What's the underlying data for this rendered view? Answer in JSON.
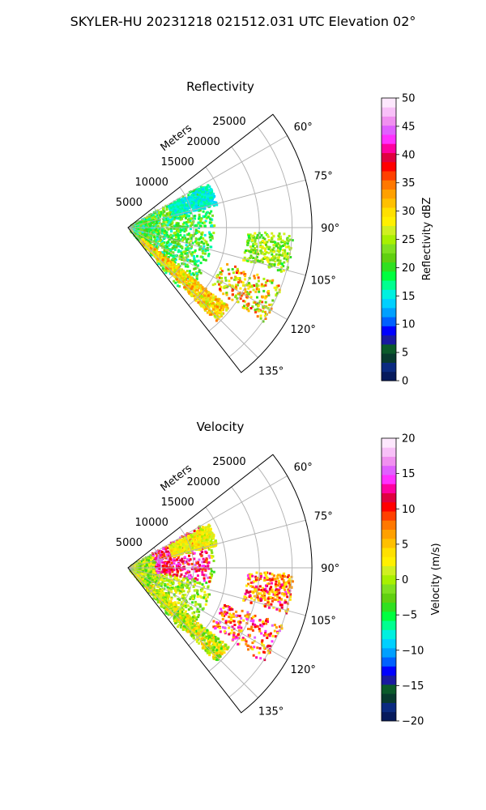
{
  "suptitle": "SKYLER-HU  20231218  021512.031 UTC Elevation 02°",
  "chart_data": [
    {
      "type": "polar-sector",
      "title": "Reflectivity",
      "range_label": "Meters",
      "range_ticks": [
        5000,
        10000,
        15000,
        20000,
        25000
      ],
      "range_max": 28000,
      "azimuth_ticks": [
        "60°",
        "75°",
        "90°",
        "105°",
        "120°",
        "135°"
      ],
      "azimuth_range_deg": [
        52,
        142
      ],
      "grid": true,
      "colorbar": {
        "label": "Reflectivity dBZ",
        "min": 0,
        "max": 50,
        "ticks": [
          "0",
          "5",
          "10",
          "15",
          "20",
          "25",
          "30",
          "35",
          "40",
          "45",
          "50"
        ],
        "colors": [
          "#061a5c",
          "#0a2a80",
          "#083a2e",
          "#0b5a2a",
          "#1a1aa0",
          "#0000ff",
          "#0060ff",
          "#00a0ff",
          "#00d0ff",
          "#00f0e0",
          "#00ff90",
          "#00ff40",
          "#30e020",
          "#60d010",
          "#80e020",
          "#a8f000",
          "#d0f020",
          "#fff000",
          "#ffe000",
          "#ffc000",
          "#ffa000",
          "#ff7800",
          "#ff4000",
          "#ff0000",
          "#e00040",
          "#ff00a0",
          "#ff30ff",
          "#e060ff",
          "#f090f0",
          "#f8c0f8",
          "#fde8fd"
        ]
      }
    },
    {
      "type": "polar-sector",
      "title": "Velocity",
      "range_label": "Meters",
      "range_ticks": [
        5000,
        10000,
        15000,
        20000,
        25000
      ],
      "range_max": 28000,
      "azimuth_ticks": [
        "60°",
        "75°",
        "90°",
        "105°",
        "120°",
        "135°"
      ],
      "azimuth_range_deg": [
        52,
        142
      ],
      "grid": true,
      "colorbar": {
        "label": "Velocity (m/s)",
        "min": -20,
        "max": 20,
        "ticks": [
          "−20",
          "−15",
          "−10",
          "−5",
          "0",
          "5",
          "10",
          "15",
          "20"
        ],
        "colors": [
          "#061a5c",
          "#0a2a80",
          "#083a2e",
          "#0b5a2a",
          "#1a1aa0",
          "#0000ff",
          "#0060ff",
          "#00a0ff",
          "#00d0ff",
          "#00f0e0",
          "#00ff90",
          "#00ff40",
          "#30e020",
          "#60d010",
          "#80e020",
          "#a8f000",
          "#d0f020",
          "#fff000",
          "#ffe000",
          "#ffc000",
          "#ffa000",
          "#ff7800",
          "#ff4000",
          "#ff0000",
          "#e00040",
          "#ff00a0",
          "#ff30ff",
          "#e060ff",
          "#f090f0",
          "#f8c0f8",
          "#fde8fd"
        ]
      }
    }
  ]
}
